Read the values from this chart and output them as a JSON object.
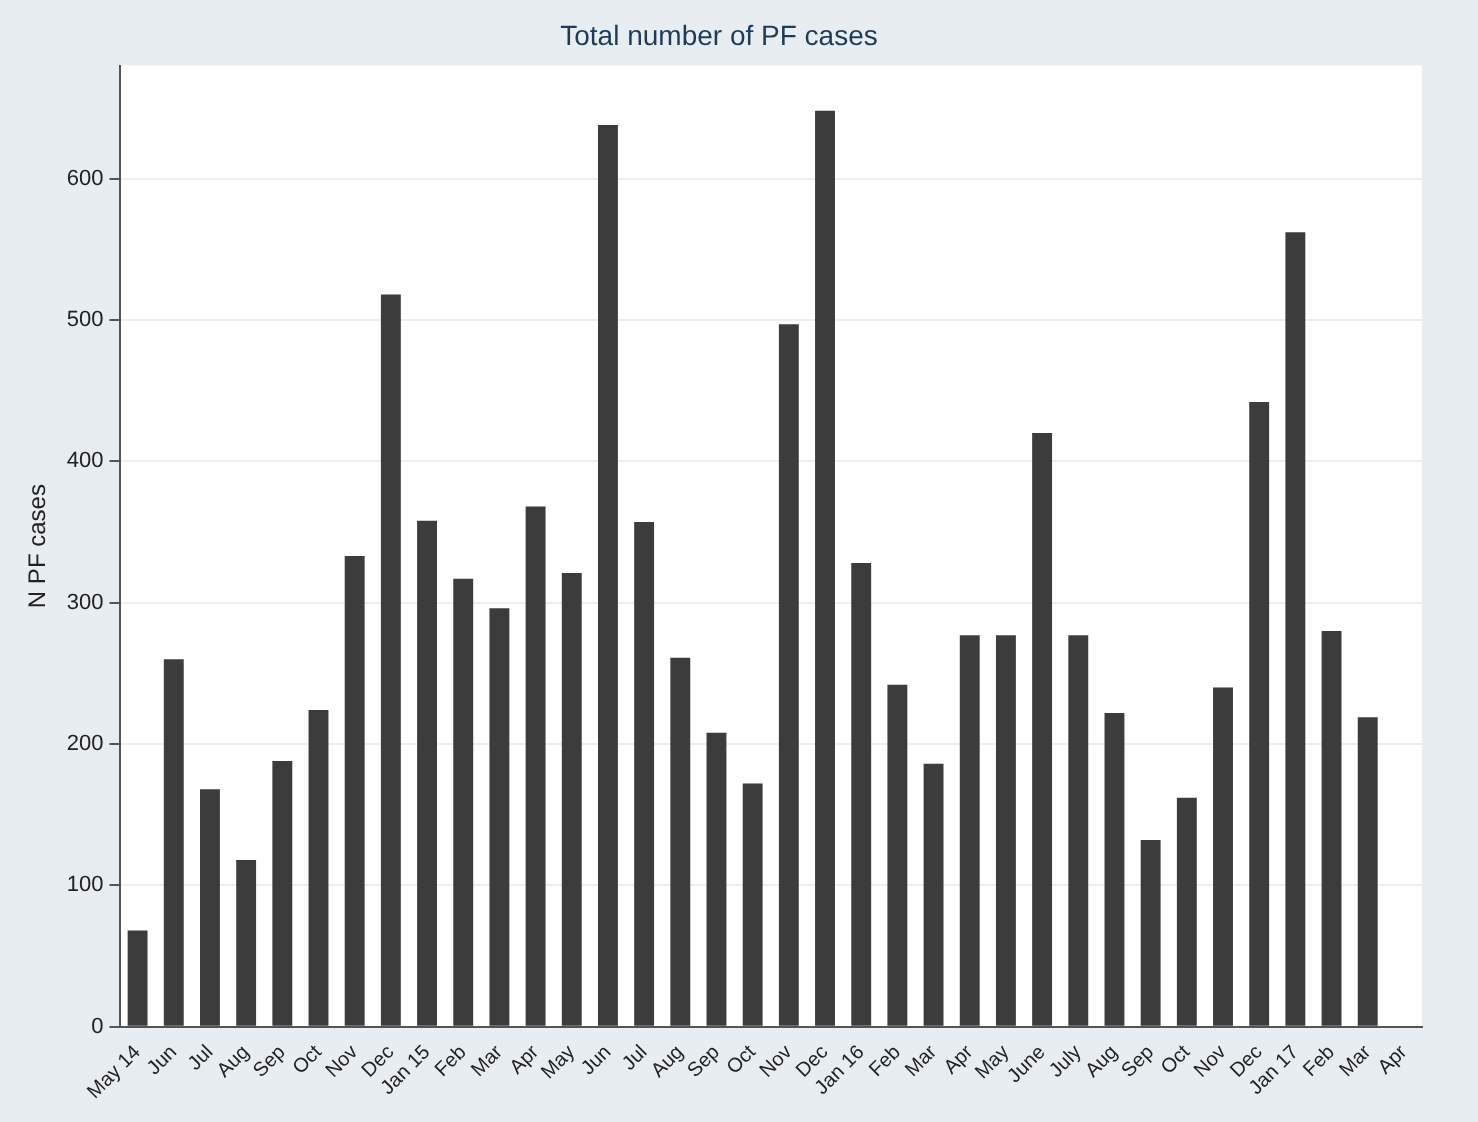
{
  "chart_data": {
    "type": "bar",
    "title": "Total number of PF cases",
    "ylabel": "N PF cases",
    "categories": [
      "May 14",
      "Jun",
      "Jul",
      "Aug",
      "Sep",
      "Oct",
      "Nov",
      "Dec",
      "Jan 15",
      "Feb",
      "Mar",
      "Apr",
      "May",
      "Jun",
      "Jul",
      "Aug",
      "Sep",
      "Oct",
      "Nov",
      "Dec",
      "Jan 16",
      "Feb",
      "Mar",
      "Apr",
      "May",
      "June",
      "July",
      "Aug",
      "Sep",
      "Oct",
      "Nov",
      "Dec",
      "Jan 17",
      "Feb",
      "Mar",
      "Apr"
    ],
    "values": [
      68,
      260,
      168,
      118,
      188,
      224,
      333,
      518,
      358,
      317,
      296,
      368,
      321,
      638,
      357,
      261,
      208,
      172,
      497,
      648,
      328,
      242,
      186,
      277,
      277,
      420,
      277,
      222,
      132,
      162,
      240,
      442,
      562,
      280,
      219,
      null
    ],
    "color": "#3c3c3c",
    "ylim": [
      0,
      680
    ],
    "yticks": [
      0,
      100,
      200,
      300,
      400,
      500,
      600
    ],
    "grid": "y"
  }
}
